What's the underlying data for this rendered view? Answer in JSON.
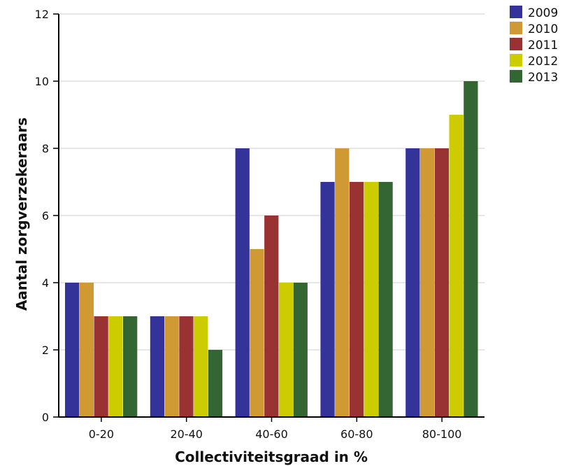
{
  "chart_data": {
    "type": "bar",
    "title": "",
    "xlabel": "Collectiviteitsgraad in %",
    "ylabel": "Aantal zorgverzekeraars",
    "categories": [
      "0-20",
      "20-40",
      "40-60",
      "60-80",
      "80-100"
    ],
    "ylim": [
      0,
      12
    ],
    "yticks": [
      0,
      2,
      4,
      6,
      8,
      10,
      12
    ],
    "grid": true,
    "legend_position": "top-right",
    "series": [
      {
        "name": "2009",
        "color": "#33339a",
        "values": [
          4,
          3,
          8,
          7,
          8
        ]
      },
      {
        "name": "2010",
        "color": "#cf9933",
        "values": [
          4,
          3,
          5,
          8,
          8
        ]
      },
      {
        "name": "2011",
        "color": "#993333",
        "values": [
          3,
          3,
          6,
          7,
          8
        ]
      },
      {
        "name": "2012",
        "color": "#cccc00",
        "values": [
          3,
          3,
          4,
          7,
          9
        ]
      },
      {
        "name": "2013",
        "color": "#336633",
        "values": [
          3,
          2,
          4,
          7,
          10
        ]
      }
    ]
  }
}
